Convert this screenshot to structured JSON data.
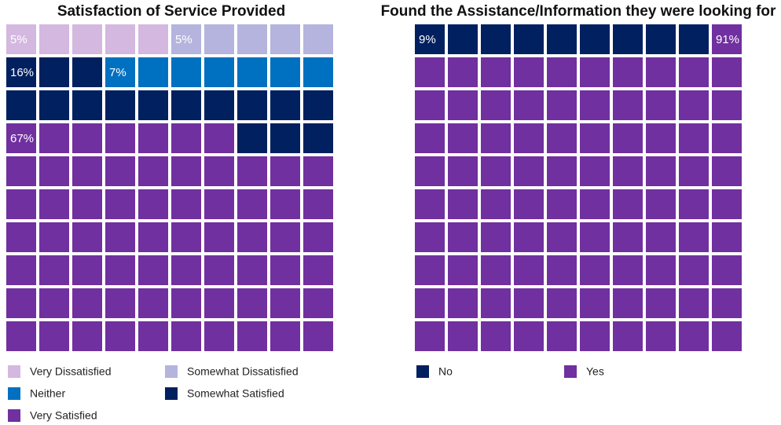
{
  "chart_data": [
    {
      "type": "waffle",
      "title": "Satisfaction of Service Provided",
      "categories": [
        "Very Dissatisfied",
        "Somewhat Dissatisfied",
        "Neither",
        "Somewhat Satisfied",
        "Very Satisfied"
      ],
      "values": [
        5,
        5,
        7,
        16,
        67
      ],
      "value_labels": [
        "5%",
        "5%",
        "7%",
        "16%",
        "67%"
      ],
      "colors": [
        "#d4b8e0",
        "#b4b4de",
        "#0070c0",
        "#002060",
        "#7030a0"
      ]
    },
    {
      "type": "waffle",
      "title": "Found the Assistance/Information they were looking for",
      "categories": [
        "No",
        "Yes"
      ],
      "values": [
        9,
        91
      ],
      "value_labels": [
        "9%",
        "91%"
      ],
      "colors": [
        "#002060",
        "#7030a0"
      ]
    }
  ]
}
